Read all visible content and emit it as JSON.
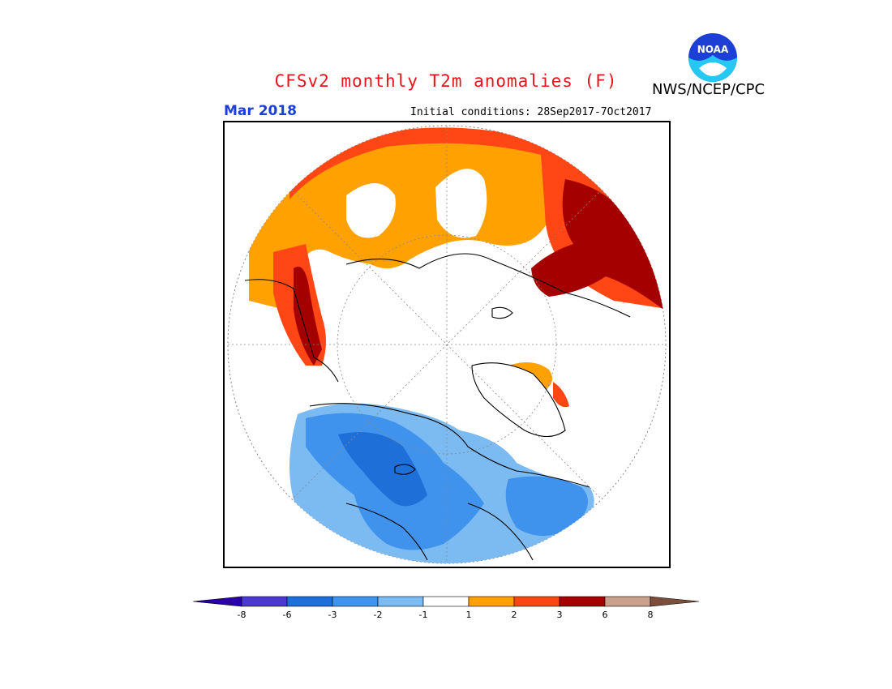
{
  "header": {
    "title": "CFSv2 monthly T2m anomalies (F)",
    "agency": "NWS/NCEP/CPC",
    "valid_month": "Mar 2018",
    "initial_conditions": "Initial conditions: 28Sep2017-7Oct2017"
  },
  "logo": {
    "name": "noaa-logo",
    "text": "NOAA"
  },
  "colorbar": {
    "labels": [
      "-8",
      "-6",
      "-3",
      "-2",
      "-1",
      "1",
      "2",
      "3",
      "6",
      "8"
    ],
    "colors": [
      "#2a00a8",
      "#4a3ad0",
      "#1f6fd8",
      "#3f93ec",
      "#7cbaf2",
      "#ffffff",
      "#ffa100",
      "#ff4614",
      "#a50000",
      "#c9a08c",
      "#7d4f3b"
    ]
  },
  "legend_colors": {
    "below_-8": "#2a00a8",
    "-8_to_-6": "#4a3ad0",
    "-6_to_-3": "#1f6fd8",
    "-3_to_-2": "#3f93ec",
    "-2_to_-1": "#7cbaf2",
    "-1_to_1": "#ffffff",
    "1_to_2": "#ffa100",
    "2_to_3": "#ff4614",
    "3_to_6": "#a50000",
    "6_to_8": "#c9a08c",
    "above_8": "#7d4f3b"
  }
}
